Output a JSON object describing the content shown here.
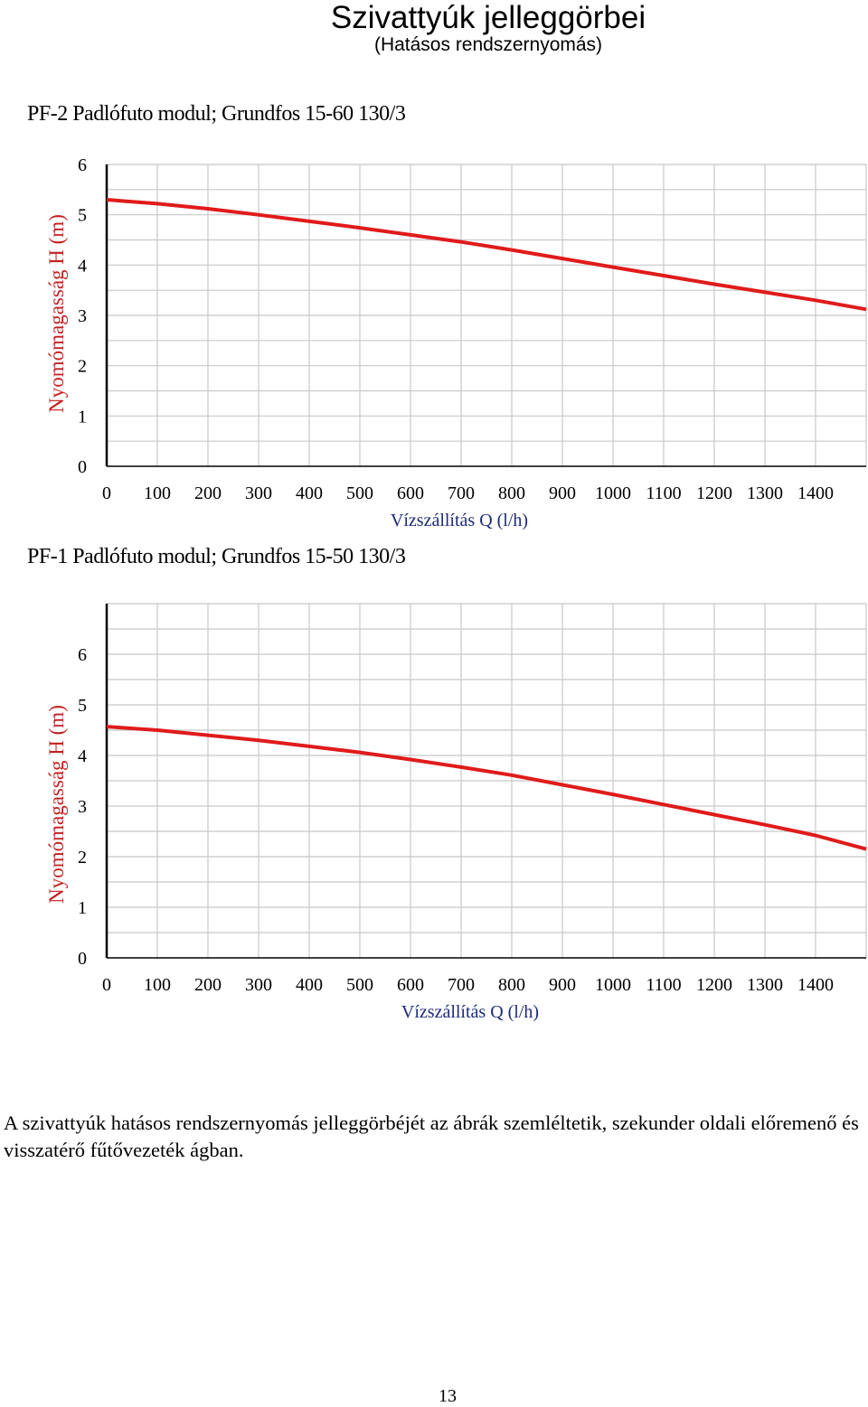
{
  "header": {
    "title": "Szivattyúk jelleggörbei",
    "subtitle": "(Hatásos rendszernyomás)"
  },
  "chart_data": [
    {
      "type": "line",
      "title": "PF-2 Padlófuto modul; Grundfos 15-60 130/3",
      "xlabel": "Vízszállítás Q (l/h)",
      "ylabel": "Nyomómagasság H (m)",
      "xlim": [
        0,
        1500
      ],
      "ylim": [
        0,
        6
      ],
      "x_ticks": [
        "0",
        "100",
        "200",
        "300",
        "400",
        "500",
        "600",
        "700",
        "800",
        "900",
        "1000",
        "1100",
        "1200",
        "1300",
        "1400"
      ],
      "y_ticks": [
        "0",
        "1",
        "2",
        "3",
        "4",
        "5",
        "6"
      ],
      "grid": true,
      "series": [
        {
          "name": "Grundfos 15-60 130/3",
          "color": "#e01b1b",
          "x": [
            0,
            100,
            200,
            300,
            400,
            500,
            600,
            700,
            800,
            900,
            1000,
            1100,
            1200,
            1300,
            1400,
            1500
          ],
          "y": [
            5.3,
            5.22,
            5.12,
            5.0,
            4.87,
            4.74,
            4.6,
            4.46,
            4.3,
            4.13,
            3.96,
            3.79,
            3.62,
            3.46,
            3.3,
            3.12
          ]
        }
      ]
    },
    {
      "type": "line",
      "title": "PF-1 Padlófuto modul; Grundfos 15-50 130/3",
      "xlabel": "Vízszállítás Q (l/h)",
      "ylabel": "Nyomómagasság H (m)",
      "xlim": [
        0,
        1500
      ],
      "ylim": [
        0,
        7
      ],
      "x_ticks": [
        "0",
        "100",
        "200",
        "300",
        "400",
        "500",
        "600",
        "700",
        "800",
        "900",
        "1000",
        "1100",
        "1200",
        "1300",
        "1400"
      ],
      "y_ticks": [
        "0",
        "1",
        "2",
        "3",
        "4",
        "5",
        "6"
      ],
      "grid": true,
      "series": [
        {
          "name": "Grundfos 15-50 130/3",
          "color": "#e01b1b",
          "x": [
            0,
            100,
            200,
            300,
            400,
            500,
            600,
            700,
            800,
            900,
            1000,
            1100,
            1200,
            1300,
            1400,
            1500
          ],
          "y": [
            4.57,
            4.5,
            4.4,
            4.3,
            4.18,
            4.06,
            3.92,
            3.77,
            3.61,
            3.42,
            3.23,
            3.03,
            2.83,
            2.63,
            2.42,
            2.15
          ]
        }
      ]
    }
  ],
  "body_text": "A szivattyúk hatásos rendszernyomás jelleggörbéjét az ábrák szemléltetik, szekunder oldali előremenő és visszatérő fűtővezeték ágban.",
  "page_number": "13"
}
